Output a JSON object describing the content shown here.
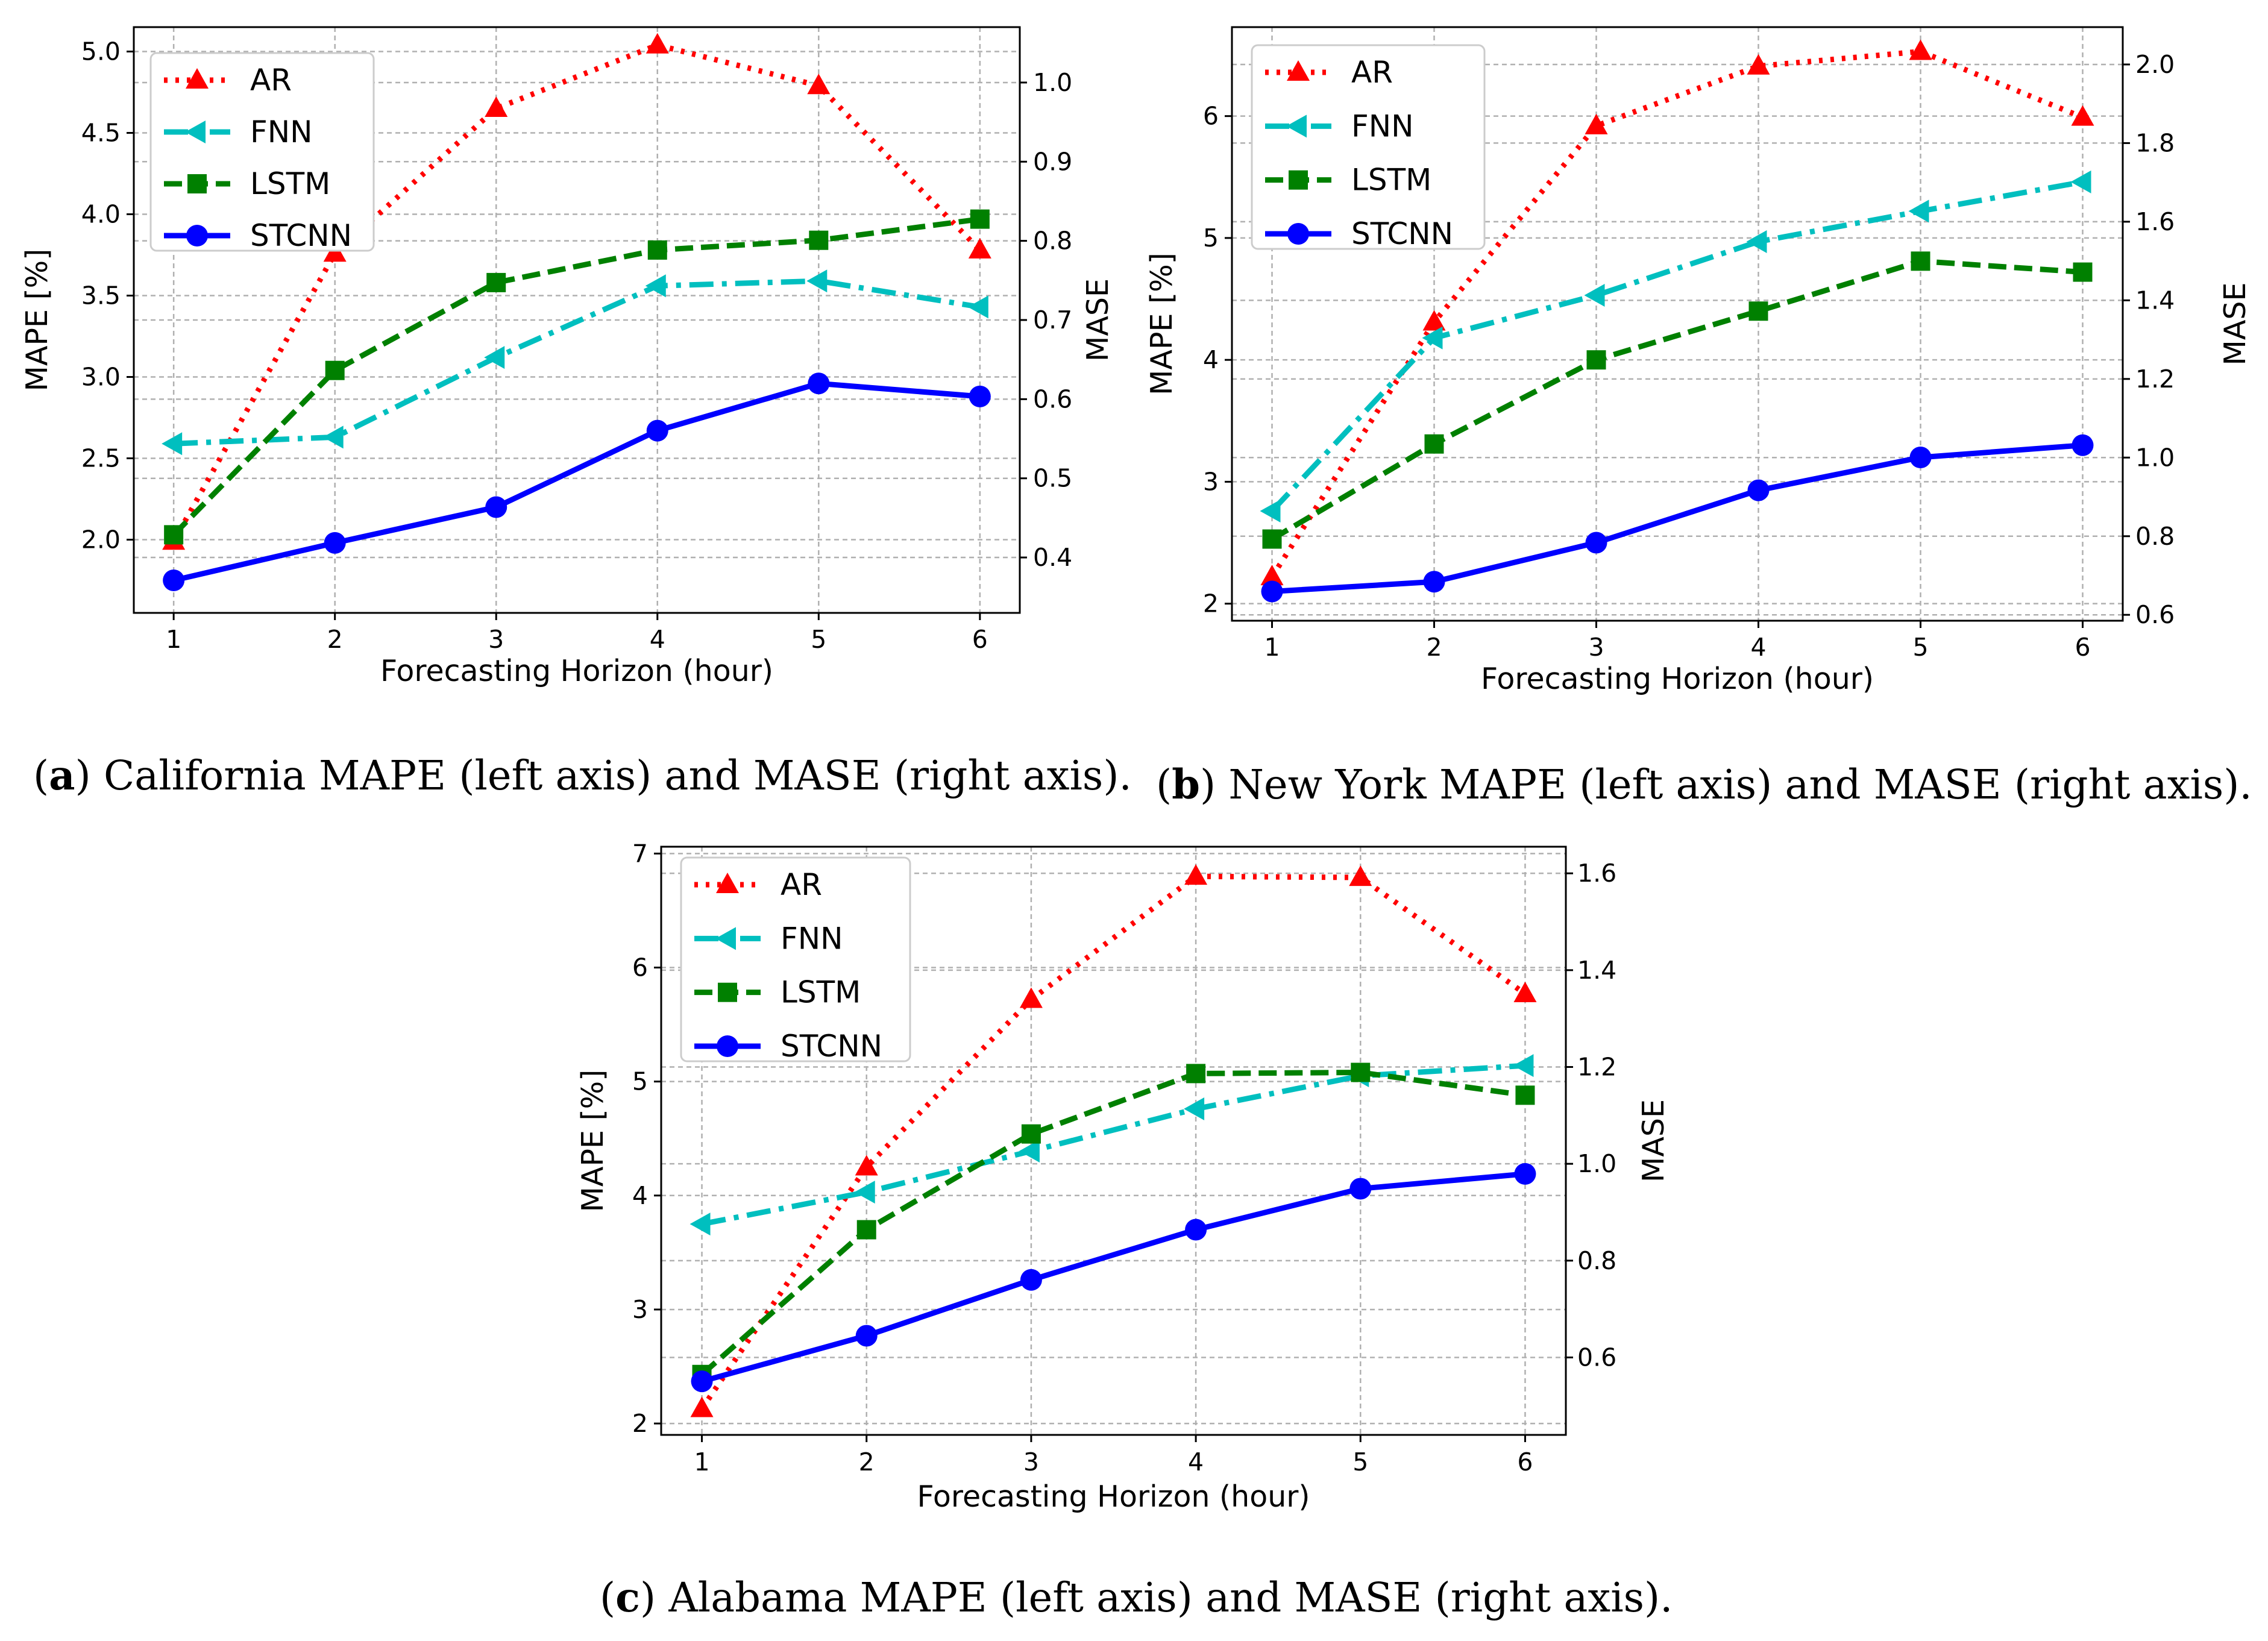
{
  "chart_data": [
    {
      "id": "a",
      "type": "line",
      "x": [
        1,
        2,
        3,
        4,
        5,
        6
      ],
      "xlabel": "Forecasting Horizon (hour)",
      "ylabel": "MAPE [%]",
      "ylabel_right": "MASE",
      "xticks": [
        "1",
        "2",
        "3",
        "4",
        "5",
        "6"
      ],
      "yticks": [
        "2.0",
        "2.5",
        "3.0",
        "3.5",
        "4.0",
        "4.5",
        "5.0"
      ],
      "yticks_right": [
        "0.4",
        "0.5",
        "0.6",
        "0.7",
        "0.8",
        "0.9",
        "1.0"
      ],
      "ylim": [
        1.55,
        5.15
      ],
      "ylim_right": [
        0.33,
        1.07
      ],
      "grid": true,
      "legend_position": "upper-left",
      "series": [
        {
          "name": "AR",
          "values": [
            1.99,
            3.76,
            4.65,
            5.04,
            4.79,
            3.78
          ]
        },
        {
          "name": "FNN",
          "values": [
            2.59,
            2.63,
            3.12,
            3.56,
            3.59,
            3.43
          ]
        },
        {
          "name": "LSTM",
          "values": [
            2.03,
            3.04,
            3.58,
            3.78,
            3.84,
            3.97
          ]
        },
        {
          "name": "STCNN",
          "values": [
            1.75,
            1.98,
            2.2,
            2.67,
            2.96,
            2.88
          ]
        }
      ],
      "caption_letter": "a",
      "caption_open": "(",
      "caption_text": ") California MAPE (left axis) and MASE (right axis)."
    },
    {
      "id": "b",
      "type": "line",
      "x": [
        1,
        2,
        3,
        4,
        5,
        6
      ],
      "xlabel": "Forecasting Horizon (hour)",
      "ylabel": "MAPE [%]",
      "ylabel_right": "MASE",
      "xticks": [
        "1",
        "2",
        "3",
        "4",
        "5",
        "6"
      ],
      "yticks": [
        "2",
        "3",
        "4",
        "5",
        "6"
      ],
      "yticks_right": [
        "0.6",
        "0.8",
        "1.0",
        "1.2",
        "1.4",
        "1.6",
        "1.8",
        "2.0"
      ],
      "ylim": [
        1.86,
        6.73
      ],
      "ylim_right": [
        0.585,
        2.095
      ],
      "grid": true,
      "legend_position": "upper-left",
      "series": [
        {
          "name": "AR",
          "values": [
            2.22,
            4.31,
            5.92,
            6.41,
            6.53,
            5.99
          ]
        },
        {
          "name": "FNN",
          "values": [
            2.76,
            4.18,
            4.53,
            4.97,
            5.22,
            5.46
          ]
        },
        {
          "name": "LSTM",
          "values": [
            2.53,
            3.31,
            4.0,
            4.4,
            4.81,
            4.72
          ]
        },
        {
          "name": "STCNN",
          "values": [
            2.1,
            2.18,
            2.5,
            2.93,
            3.2,
            3.3
          ]
        }
      ],
      "caption_letter": "b",
      "caption_open": "(",
      "caption_text": ") New York MAPE (left axis) and MASE (right axis)."
    },
    {
      "id": "c",
      "type": "line",
      "x": [
        1,
        2,
        3,
        4,
        5,
        6
      ],
      "xlabel": "Forecasting Horizon (hour)",
      "ylabel": "MAPE [%]",
      "ylabel_right": "MASE",
      "xticks": [
        "1",
        "2",
        "3",
        "4",
        "5",
        "6"
      ],
      "yticks": [
        "2",
        "3",
        "4",
        "5",
        "6",
        "7"
      ],
      "yticks_right": [
        "0.6",
        "0.8",
        "1.0",
        "1.2",
        "1.4",
        "1.6"
      ],
      "ylim": [
        1.9,
        7.06
      ],
      "ylim_right": [
        0.44,
        1.655
      ],
      "grid": true,
      "legend_position": "upper-left",
      "series": [
        {
          "name": "AR",
          "values": [
            2.13,
            4.25,
            5.72,
            6.8,
            6.79,
            5.77
          ]
        },
        {
          "name": "FNN",
          "values": [
            3.75,
            4.03,
            4.39,
            4.76,
            5.05,
            5.14
          ]
        },
        {
          "name": "LSTM",
          "values": [
            2.43,
            3.7,
            4.54,
            5.07,
            5.08,
            4.88
          ]
        },
        {
          "name": "STCNN",
          "values": [
            2.37,
            2.77,
            3.26,
            3.7,
            4.06,
            4.19
          ]
        }
      ],
      "caption_letter": "c",
      "caption_open": "(",
      "caption_text": ") Alabama MAPE (left axis) and MASE (right axis)."
    }
  ],
  "series_styles": [
    {
      "color": "#ff0000",
      "dash": "6 13",
      "width": 9,
      "marker": "triangle-up-icon"
    },
    {
      "color": "#00bfbf",
      "dash": "40 14 8 14",
      "width": 9,
      "marker": "triangle-left-icon"
    },
    {
      "color": "#008000",
      "dash": "30 13",
      "width": 9,
      "marker": "square-icon"
    },
    {
      "color": "#0000ff",
      "dash": "",
      "width": 9,
      "marker": "circle-icon"
    }
  ]
}
